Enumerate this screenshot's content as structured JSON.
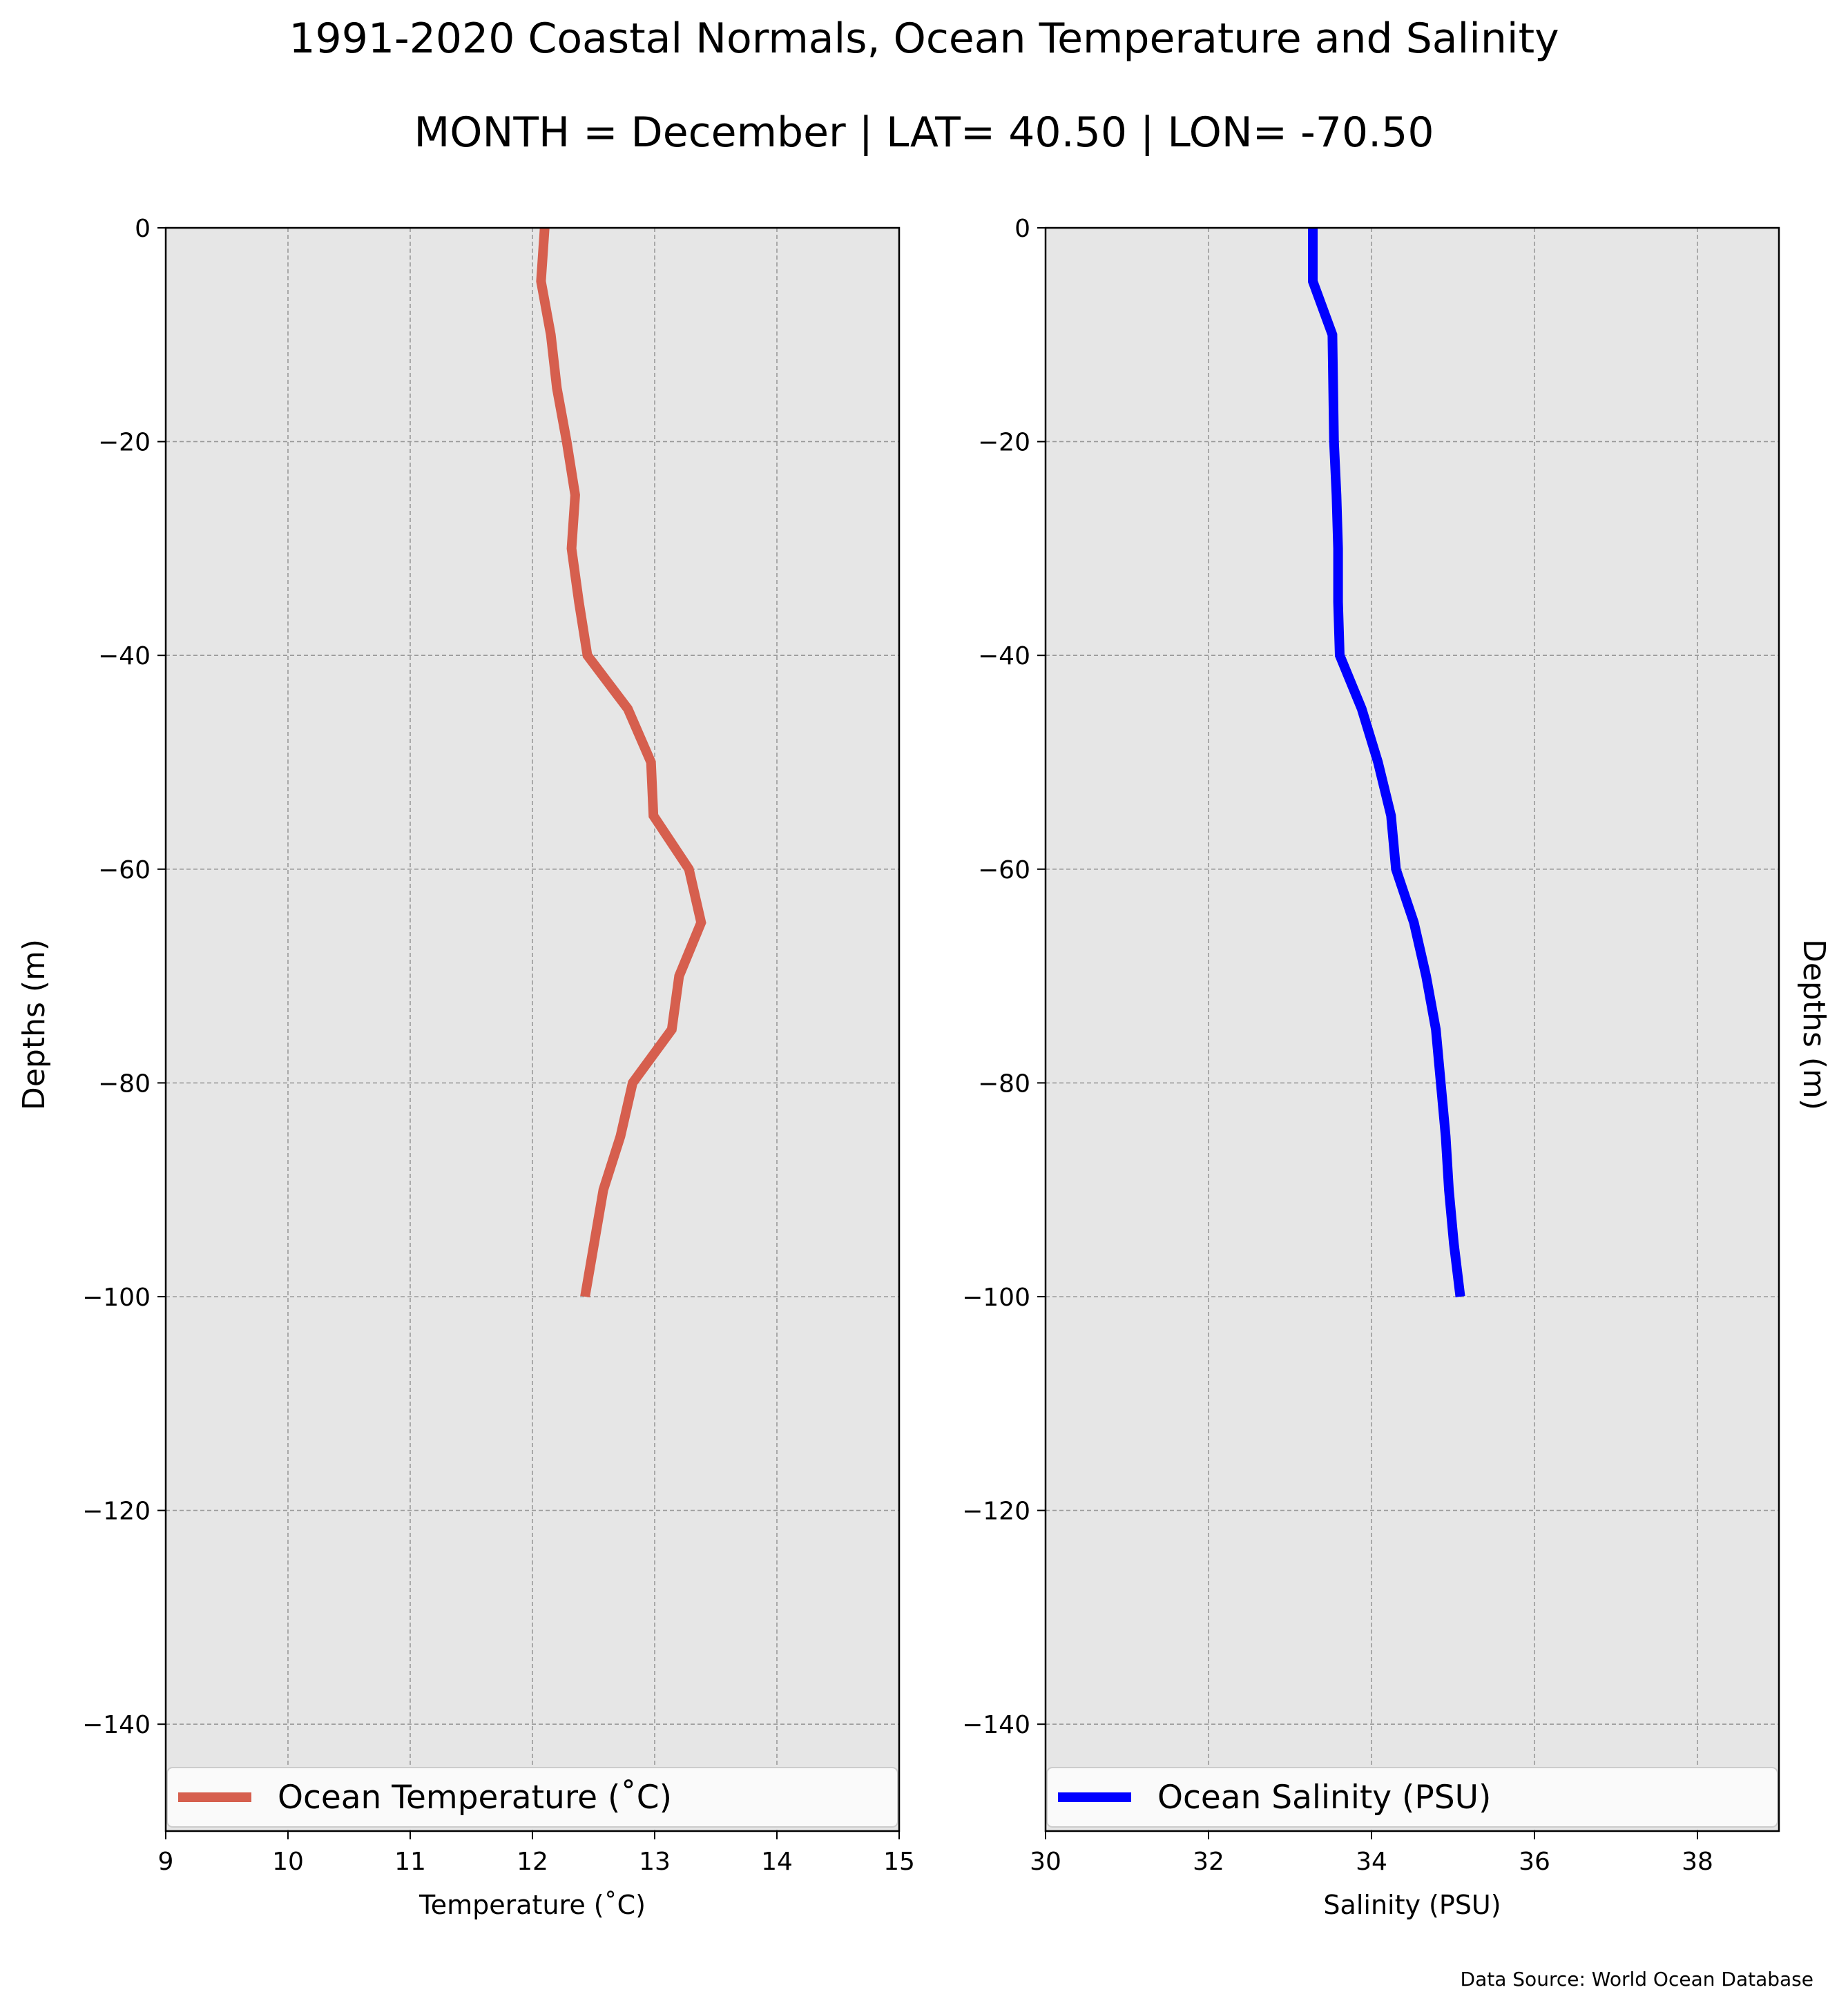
{
  "title": "1991-2020 Coastal Normals, Ocean Temperature and Salinity",
  "subtitle": "MONTH = December | LAT= 40.50 | LON= -70.50",
  "source_note": "Data Source: World Ocean Database",
  "colors": {
    "temperature": "#d65f4e",
    "salinity": "#0000ff",
    "plot_background": "#e6e6e6",
    "grid": "#9a9a9a"
  },
  "chart_data": [
    {
      "type": "line",
      "xlabel": "Temperature ($^\\circ$C)",
      "xlabel_display": "Temperature (˚C)",
      "ylabel": "Depths (m)",
      "xlim": [
        9,
        15
      ],
      "ylim": [
        -150,
        0
      ],
      "xticks": [
        "9",
        "10",
        "11",
        "12",
        "13",
        "14",
        "15"
      ],
      "yticks": [
        "0",
        "−20",
        "−40",
        "−60",
        "−80",
        "−100",
        "−120",
        "−140"
      ],
      "grid": true,
      "legend_position": "bottom",
      "series": [
        {
          "name": "Ocean Temperature (˚C)",
          "x": [
            12.1,
            12.07,
            12.15,
            12.2,
            12.28,
            12.35,
            12.32,
            12.38,
            12.45,
            12.78,
            12.97,
            12.99,
            13.28,
            13.38,
            13.2,
            13.14,
            12.82,
            12.72,
            12.58,
            12.43
          ],
          "y": [
            0,
            -5,
            -10,
            -15,
            -20,
            -25,
            -30,
            -35,
            -40,
            -45,
            -50,
            -55,
            -60,
            -65,
            -70,
            -75,
            -80,
            -85,
            -90,
            -100
          ]
        }
      ]
    },
    {
      "type": "line",
      "xlabel": "Salinity (PSU)",
      "ylabel": "Depths (m)",
      "xlim": [
        30,
        39
      ],
      "ylim": [
        -150,
        0
      ],
      "xticks": [
        "30",
        "32",
        "34",
        "36",
        "38"
      ],
      "yticks": [
        "0",
        "−20",
        "−40",
        "−60",
        "−80",
        "−100",
        "−120",
        "−140"
      ],
      "grid": true,
      "legend_position": "bottom",
      "series": [
        {
          "name": "Ocean Salinity (PSU)",
          "x": [
            33.28,
            33.28,
            33.52,
            33.54,
            33.57,
            33.59,
            33.59,
            33.61,
            33.88,
            34.08,
            34.24,
            34.3,
            34.52,
            34.67,
            34.79,
            34.85,
            34.91,
            34.95,
            35.01,
            35.09
          ],
          "y": [
            0,
            -5,
            -10,
            -20,
            -25,
            -30,
            -35,
            -40,
            -45,
            -50,
            -55,
            -60,
            -65,
            -70,
            -75,
            -80,
            -85,
            -90,
            -95,
            -100
          ]
        }
      ]
    }
  ]
}
